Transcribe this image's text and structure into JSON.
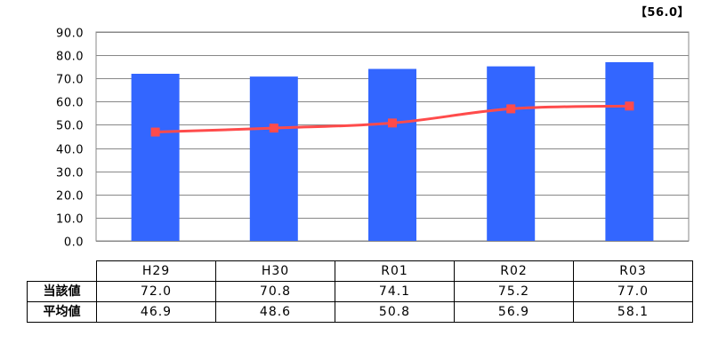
{
  "note": "【56.0】",
  "chart_data": {
    "type": "bar",
    "categories": [
      "H29",
      "H30",
      "R01",
      "R02",
      "R03"
    ],
    "series": [
      {
        "name": "当該値",
        "type": "bar",
        "values": [
          72.0,
          70.8,
          74.1,
          75.2,
          77.0
        ],
        "color": "#3366FF",
        "display": [
          "72.0",
          "70.8",
          "74.1",
          "75.2",
          "77.0"
        ]
      },
      {
        "name": "平均値",
        "type": "line",
        "values": [
          46.9,
          48.6,
          50.8,
          56.9,
          58.1
        ],
        "color": "#FF4B4B",
        "display": [
          "46.9",
          "48.6",
          "50.8",
          "56.9",
          "58.1"
        ]
      }
    ],
    "y_ticks": [
      "0.0",
      "10.0",
      "20.0",
      "30.0",
      "40.0",
      "50.0",
      "60.0",
      "70.0",
      "80.0",
      "90.0"
    ],
    "ylim": [
      0,
      90
    ],
    "grid": true,
    "legend": "data-table-below"
  }
}
